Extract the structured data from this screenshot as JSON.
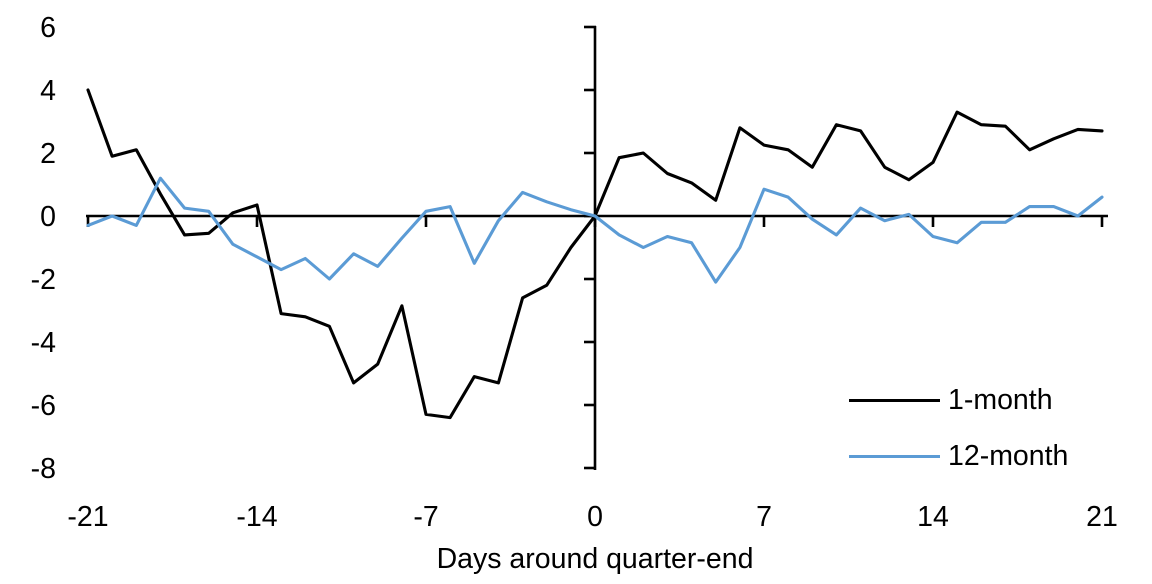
{
  "chart_data": {
    "type": "line",
    "title": "",
    "xlabel": "Days around quarter-end",
    "ylabel": "",
    "grid": false,
    "legend_position": "inside-bottom-right",
    "axis_color": "#000000",
    "background_color": "#ffffff",
    "xlim": [
      -21,
      21
    ],
    "ylim": [
      -8,
      6
    ],
    "x_ticks": [
      -21,
      -14,
      -7,
      0,
      7,
      14,
      21
    ],
    "y_ticks": [
      6,
      4,
      2,
      0,
      -2,
      -4,
      -6,
      -8
    ],
    "x": [
      -21,
      -20,
      -19,
      -18,
      -17,
      -16,
      -15,
      -14,
      -13,
      -12,
      -11,
      -10,
      -9,
      -8,
      -7,
      -6,
      -5,
      -4,
      -3,
      -2,
      -1,
      0,
      1,
      2,
      3,
      4,
      5,
      6,
      7,
      8,
      9,
      10,
      11,
      12,
      13,
      14,
      15,
      16,
      17,
      18,
      19,
      20,
      21
    ],
    "series": [
      {
        "name": "1-month",
        "color": "#000000",
        "values": [
          4.0,
          1.9,
          2.1,
          0.7,
          -0.6,
          -0.55,
          0.1,
          0.35,
          -3.1,
          -3.2,
          -3.5,
          -5.3,
          -4.7,
          -2.85,
          -6.3,
          -6.4,
          -5.1,
          -5.3,
          -2.6,
          -2.2,
          -1.0,
          0,
          1.85,
          2.0,
          1.35,
          1.05,
          0.5,
          2.8,
          2.25,
          2.1,
          1.55,
          2.9,
          2.7,
          1.55,
          1.15,
          1.7,
          3.3,
          2.9,
          2.85,
          2.1,
          2.45,
          2.75,
          2.7
        ]
      },
      {
        "name": "12-month",
        "color": "#5B9BD5",
        "values": [
          -0.3,
          0.0,
          -0.3,
          1.2,
          0.25,
          0.15,
          -0.9,
          -1.3,
          -1.7,
          -1.35,
          -2.0,
          -1.2,
          -1.6,
          -0.7,
          0.15,
          0.3,
          -1.5,
          -0.15,
          0.75,
          0.45,
          0.2,
          0.0,
          -0.6,
          -1.0,
          -0.65,
          -0.85,
          -2.1,
          -1.0,
          0.85,
          0.6,
          -0.1,
          -0.6,
          0.25,
          -0.15,
          0.05,
          -0.65,
          -0.85,
          -0.2,
          -0.2,
          0.3,
          0.3,
          0.0,
          0.6
        ]
      }
    ]
  }
}
